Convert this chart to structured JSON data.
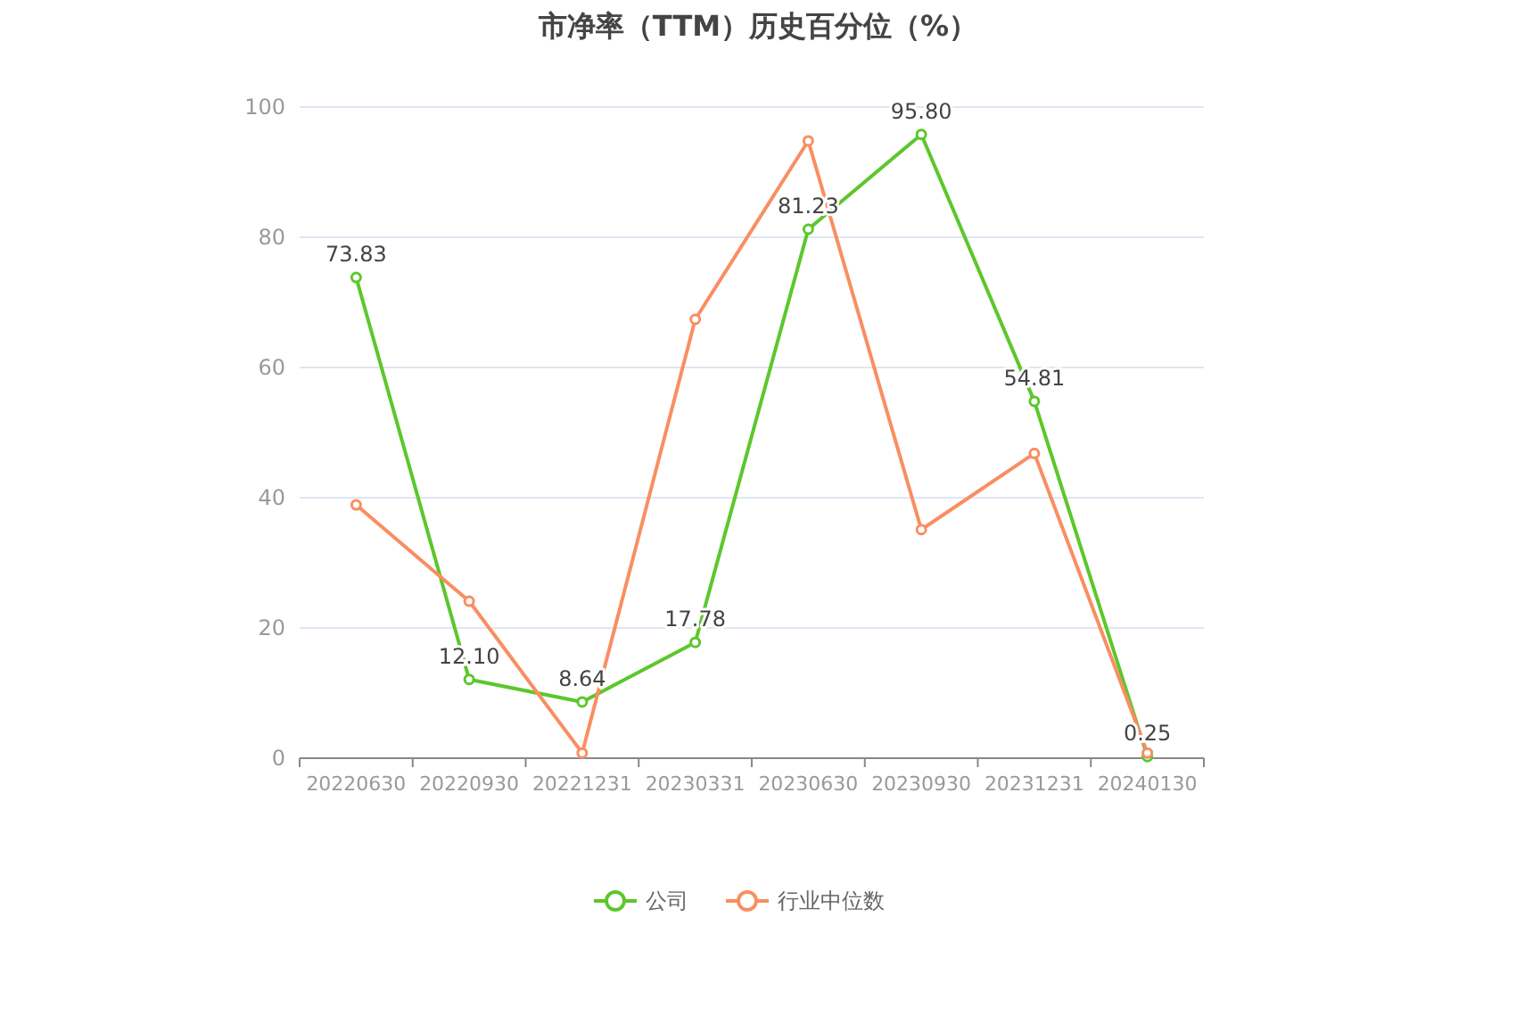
{
  "chart_data": {
    "type": "line",
    "title": "市净率（TTM）历史百分位（%）",
    "categories": [
      "20220630",
      "20220930",
      "20221231",
      "20230331",
      "20230630",
      "20230930",
      "20231231",
      "20240130"
    ],
    "series": [
      {
        "name": "公司",
        "color": "#5cc72c",
        "values": [
          73.83,
          12.1,
          8.64,
          17.78,
          81.23,
          95.8,
          54.81,
          0.25
        ],
        "value_labels": [
          "73.83",
          "12.10",
          "8.64",
          "17.78",
          "81.23",
          "95.80",
          "54.81",
          "0.25"
        ]
      },
      {
        "name": "行业中位数",
        "color": "#f98e62",
        "values": [
          38.9,
          24.1,
          0.8,
          67.4,
          94.8,
          35.1,
          46.8,
          0.8
        ]
      }
    ],
    "ylim": [
      0,
      100
    ],
    "yticks": [
      0,
      20,
      40,
      60,
      80,
      100
    ],
    "grid": "y",
    "legend": "bottom",
    "marker": "circle",
    "line_style": "solid"
  }
}
